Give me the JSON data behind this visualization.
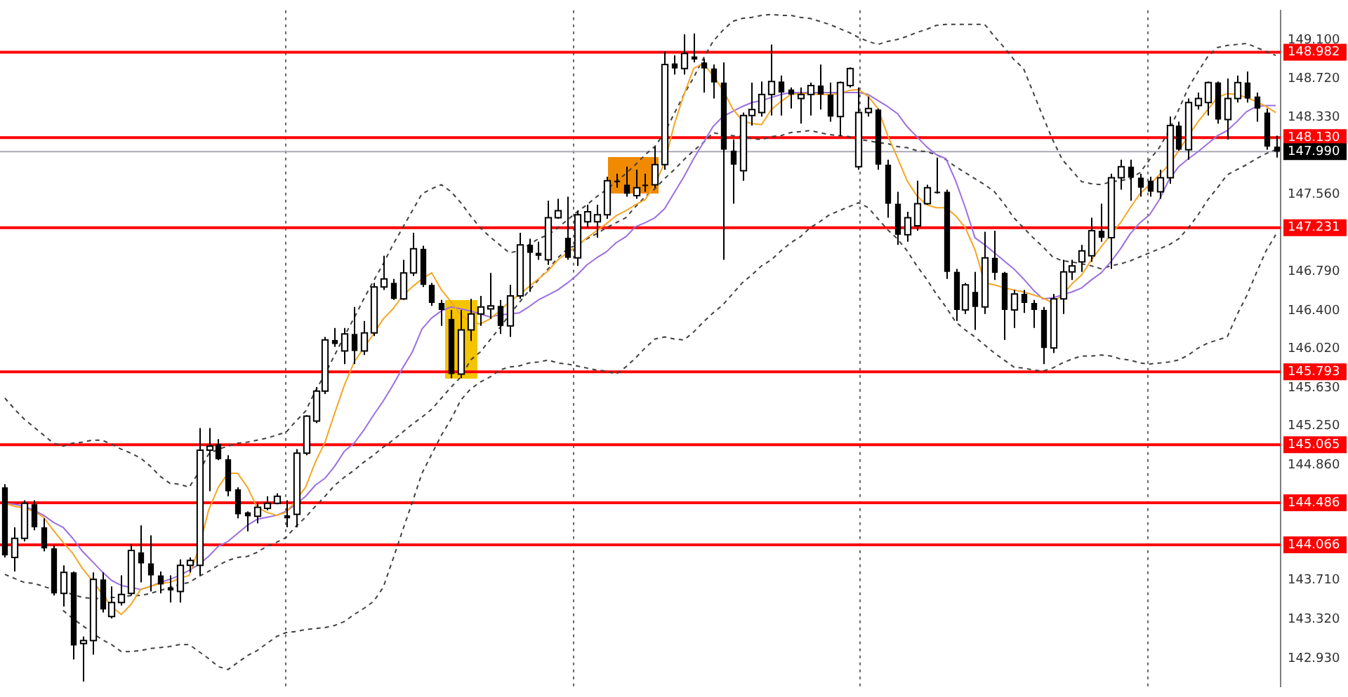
{
  "chart_data": {
    "type": "candlestick",
    "tick_labels": "y",
    "categories": [
      null,
      null,
      null,
      null,
      null,
      null,
      null,
      null,
      null,
      null,
      null,
      null,
      null,
      null,
      null,
      null,
      null,
      null,
      null,
      null,
      null,
      null,
      null,
      null,
      null,
      null,
      null,
      null,
      null,
      null,
      null,
      null,
      null,
      null,
      null,
      null,
      null,
      null,
      null,
      null,
      null,
      null,
      null,
      null,
      null,
      null,
      null,
      null,
      null,
      null,
      null,
      null,
      null,
      null,
      null,
      null,
      null,
      null,
      null,
      null,
      null,
      null,
      null,
      null,
      null,
      null,
      null,
      null,
      null,
      null,
      null,
      null,
      null,
      null,
      null,
      null,
      null,
      null,
      null,
      null,
      null,
      null,
      null,
      null,
      null,
      null,
      null,
      null,
      null,
      null,
      null,
      null,
      null,
      null,
      null,
      null,
      null,
      null,
      null,
      null,
      null,
      null,
      null,
      null,
      null,
      null,
      null,
      null,
      null,
      null,
      null,
      null,
      null,
      null,
      null,
      null,
      null,
      null,
      null,
      null,
      null,
      null,
      null,
      null,
      null,
      null,
      null,
      null,
      null,
      null,
      null,
      null
    ],
    "ohlc": [
      [
        144.64,
        144.67,
        143.94,
        143.96
      ],
      [
        143.94,
        144.24,
        143.8,
        144.13
      ],
      [
        144.13,
        144.51,
        144.1,
        144.48
      ],
      [
        144.47,
        144.51,
        144.21,
        144.24
      ],
      [
        144.24,
        144.33,
        144.0,
        144.03
      ],
      [
        144.03,
        144.06,
        143.56,
        143.58
      ],
      [
        143.58,
        143.86,
        143.45,
        143.79
      ],
      [
        143.79,
        143.8,
        142.92,
        143.06
      ],
      [
        143.08,
        143.15,
        142.7,
        143.11
      ],
      [
        143.11,
        143.79,
        142.97,
        143.72
      ],
      [
        143.72,
        143.79,
        143.39,
        143.42
      ],
      [
        143.35,
        143.65,
        143.33,
        143.49
      ],
      [
        143.49,
        143.76,
        143.46,
        143.57
      ],
      [
        143.58,
        144.07,
        143.56,
        144.01
      ],
      [
        143.99,
        144.26,
        143.69,
        143.88
      ],
      [
        143.88,
        144.16,
        143.6,
        143.76
      ],
      [
        143.76,
        143.8,
        143.58,
        143.67
      ],
      [
        143.64,
        143.76,
        143.49,
        143.61
      ],
      [
        143.6,
        143.92,
        143.49,
        143.86
      ],
      [
        143.86,
        143.94,
        143.79,
        143.91
      ],
      [
        143.86,
        145.23,
        143.76,
        145.01
      ],
      [
        145.01,
        145.23,
        144.6,
        145.05
      ],
      [
        145.07,
        145.12,
        144.91,
        144.92
      ],
      [
        144.92,
        144.96,
        144.55,
        144.6
      ],
      [
        144.62,
        144.64,
        144.33,
        144.37
      ],
      [
        144.39,
        144.4,
        144.2,
        144.35
      ],
      [
        144.35,
        144.48,
        144.28,
        144.44
      ],
      [
        144.43,
        144.55,
        144.41,
        144.48
      ],
      [
        144.48,
        144.58,
        144.47,
        144.55
      ],
      [
        144.36,
        144.51,
        144.24,
        144.33
      ],
      [
        144.37,
        145.02,
        144.24,
        144.98
      ],
      [
        144.98,
        145.36,
        144.96,
        145.35
      ],
      [
        145.3,
        145.64,
        145.28,
        145.6
      ],
      [
        145.6,
        146.14,
        145.57,
        146.11
      ],
      [
        146.11,
        146.23,
        146.04,
        146.07
      ],
      [
        146.0,
        146.23,
        145.87,
        146.17
      ],
      [
        146.17,
        146.44,
        145.87,
        146.0
      ],
      [
        146.0,
        146.3,
        145.96,
        146.18
      ],
      [
        146.18,
        146.68,
        146.15,
        146.64
      ],
      [
        146.64,
        146.95,
        146.61,
        146.72
      ],
      [
        146.68,
        146.72,
        146.51,
        146.52
      ],
      [
        146.52,
        146.91,
        146.51,
        146.78
      ],
      [
        146.78,
        147.18,
        146.75,
        147.02
      ],
      [
        147.02,
        147.05,
        146.64,
        146.66
      ],
      [
        146.66,
        146.68,
        146.45,
        146.48
      ],
      [
        146.48,
        146.51,
        146.25,
        146.41
      ],
      [
        146.32,
        146.41,
        145.73,
        145.77
      ],
      [
        145.77,
        146.41,
        145.73,
        146.21
      ],
      [
        146.21,
        146.52,
        146.1,
        146.37
      ],
      [
        146.37,
        146.55,
        146.25,
        146.44
      ],
      [
        146.42,
        146.78,
        146.32,
        146.45
      ],
      [
        146.45,
        146.51,
        146.17,
        146.25
      ],
      [
        146.25,
        146.66,
        146.14,
        146.55
      ],
      [
        146.55,
        147.18,
        146.52,
        147.06
      ],
      [
        147.06,
        147.12,
        146.59,
        146.98
      ],
      [
        146.98,
        147.09,
        146.91,
        146.95
      ],
      [
        146.91,
        147.5,
        146.86,
        147.33
      ],
      [
        147.33,
        147.52,
        147.32,
        147.4
      ],
      [
        147.13,
        147.54,
        146.91,
        146.93
      ],
      [
        146.93,
        147.4,
        146.85,
        147.36
      ],
      [
        147.29,
        147.46,
        147.23,
        147.39
      ],
      [
        147.29,
        147.46,
        147.13,
        147.36
      ],
      [
        147.36,
        147.74,
        147.32,
        147.7
      ],
      [
        147.7,
        147.77,
        147.63,
        147.69
      ],
      [
        147.66,
        147.84,
        147.54,
        147.57
      ],
      [
        147.55,
        147.81,
        147.52,
        147.63
      ],
      [
        147.66,
        147.77,
        147.59,
        147.65
      ],
      [
        147.66,
        148.04,
        147.63,
        147.86
      ],
      [
        147.86,
        148.99,
        147.81,
        148.86
      ],
      [
        148.87,
        148.95,
        148.76,
        148.82
      ],
      [
        148.82,
        149.16,
        148.76,
        148.97
      ],
      [
        148.94,
        149.17,
        148.88,
        148.91
      ],
      [
        148.88,
        148.92,
        148.58,
        148.82
      ],
      [
        148.82,
        148.86,
        148.52,
        148.68
      ],
      [
        148.68,
        148.88,
        146.91,
        148.01
      ],
      [
        148.0,
        148.11,
        147.47,
        147.86
      ],
      [
        147.8,
        148.38,
        147.7,
        148.35
      ],
      [
        148.35,
        148.68,
        148.25,
        148.41
      ],
      [
        148.38,
        148.69,
        148.34,
        148.56
      ],
      [
        148.56,
        149.06,
        148.35,
        148.69
      ],
      [
        148.69,
        148.75,
        148.35,
        148.58
      ],
      [
        148.61,
        148.63,
        148.42,
        148.56
      ],
      [
        148.52,
        148.63,
        148.27,
        148.56
      ],
      [
        148.56,
        148.68,
        148.35,
        148.65
      ],
      [
        148.65,
        148.86,
        148.41,
        148.56
      ],
      [
        148.56,
        148.68,
        148.29,
        148.34
      ],
      [
        148.34,
        148.69,
        148.15,
        148.68
      ],
      [
        148.65,
        148.83,
        148.63,
        148.82
      ],
      [
        147.84,
        148.63,
        147.81,
        148.38
      ],
      [
        148.38,
        148.54,
        148.34,
        148.42
      ],
      [
        148.41,
        148.42,
        147.81,
        147.86
      ],
      [
        147.86,
        147.91,
        147.33,
        147.47
      ],
      [
        147.47,
        147.59,
        147.06,
        147.16
      ],
      [
        147.16,
        147.39,
        147.09,
        147.33
      ],
      [
        147.25,
        147.7,
        147.2,
        147.47
      ],
      [
        147.47,
        147.66,
        147.46,
        147.63
      ],
      [
        147.59,
        147.93,
        147.57,
        147.58
      ],
      [
        147.59,
        147.61,
        146.72,
        146.79
      ],
      [
        146.79,
        146.82,
        146.3,
        146.41
      ],
      [
        146.41,
        146.68,
        146.37,
        146.66
      ],
      [
        146.59,
        146.79,
        146.21,
        146.44
      ],
      [
        146.44,
        147.19,
        146.37,
        146.93
      ],
      [
        146.93,
        147.2,
        146.71,
        146.78
      ],
      [
        146.78,
        146.79,
        146.11,
        146.41
      ],
      [
        146.41,
        146.61,
        146.23,
        146.57
      ],
      [
        146.57,
        146.61,
        146.38,
        146.48
      ],
      [
        146.48,
        146.51,
        146.23,
        146.41
      ],
      [
        146.41,
        146.44,
        145.87,
        146.03
      ],
      [
        146.03,
        146.57,
        145.98,
        146.52
      ],
      [
        146.52,
        146.91,
        146.37,
        146.79
      ],
      [
        146.79,
        146.91,
        146.71,
        146.85
      ],
      [
        146.89,
        147.06,
        146.79,
        147.0
      ],
      [
        146.95,
        147.33,
        146.89,
        147.2
      ],
      [
        147.2,
        147.47,
        147.09,
        147.13
      ],
      [
        147.13,
        147.77,
        146.82,
        147.73
      ],
      [
        147.73,
        147.91,
        147.61,
        147.84
      ],
      [
        147.84,
        147.91,
        147.5,
        147.73
      ],
      [
        147.73,
        147.77,
        147.54,
        147.63
      ],
      [
        147.7,
        147.74,
        147.54,
        147.59
      ],
      [
        147.59,
        147.81,
        147.52,
        147.73
      ],
      [
        147.73,
        148.34,
        147.67,
        148.25
      ],
      [
        148.25,
        148.29,
        148.0,
        148.01
      ],
      [
        148.01,
        148.52,
        147.91,
        148.48
      ],
      [
        148.45,
        148.58,
        148.41,
        148.52
      ],
      [
        148.48,
        148.69,
        148.35,
        148.68
      ],
      [
        148.68,
        148.69,
        148.27,
        148.31
      ],
      [
        148.31,
        148.72,
        148.11,
        148.52
      ],
      [
        148.52,
        148.75,
        148.48,
        148.68
      ],
      [
        148.68,
        148.79,
        148.48,
        148.52
      ],
      [
        148.54,
        148.58,
        148.29,
        148.42
      ],
      [
        148.38,
        148.42,
        148.01,
        148.04
      ],
      [
        148.04,
        148.15,
        147.93,
        147.99
      ]
    ],
    "series": [
      {
        "type": "line",
        "color": "#f5a623",
        "values": [
          144.48,
          144.45,
          144.43,
          144.4,
          144.34,
          144.21,
          144.09,
          143.98,
          143.83,
          143.71,
          143.58,
          143.45,
          143.37,
          143.47,
          143.62,
          143.65,
          143.68,
          143.69,
          143.73,
          143.76,
          144.03,
          144.41,
          144.64,
          144.78,
          144.78,
          144.64,
          144.44,
          144.39,
          144.36,
          144.39,
          144.51,
          144.64,
          144.89,
          145.09,
          145.38,
          145.66,
          145.89,
          146.03,
          146.17,
          146.32,
          146.42,
          146.55,
          146.64,
          146.72,
          146.78,
          146.61,
          146.49,
          146.36,
          146.29,
          146.27,
          146.32,
          146.4,
          146.49,
          146.56,
          146.64,
          146.72,
          146.8,
          146.91,
          146.98,
          147.05,
          147.13,
          147.2,
          147.27,
          147.35,
          147.4,
          147.46,
          147.51,
          147.66,
          147.88,
          148.26,
          148.56,
          148.82,
          148.87,
          148.75,
          148.61,
          148.42,
          148.3,
          148.27,
          148.26,
          148.41,
          148.49,
          148.56,
          148.57,
          148.57,
          148.56,
          148.56,
          148.57,
          148.6,
          148.61,
          148.54,
          148.42,
          148.15,
          147.93,
          147.7,
          147.55,
          147.46,
          147.43,
          147.43,
          147.35,
          147.23,
          147.01,
          146.68,
          146.66,
          146.63,
          146.61,
          146.59,
          146.56,
          146.53,
          146.48,
          146.56,
          146.67,
          146.76,
          146.91,
          147.04,
          147.16,
          147.28,
          147.43,
          147.57,
          147.66,
          147.76,
          147.86,
          148.0,
          148.15,
          148.29,
          148.41,
          148.53,
          148.57,
          148.56,
          148.53,
          148.49,
          148.44,
          148.38
        ]
      },
      {
        "type": "line",
        "color": "#9b6fe0",
        "values": [
          144.48,
          144.47,
          144.45,
          144.41,
          144.36,
          144.29,
          144.24,
          144.13,
          144.0,
          143.9,
          143.8,
          143.71,
          143.66,
          143.64,
          143.62,
          143.65,
          143.69,
          143.72,
          143.76,
          143.81,
          143.87,
          143.95,
          144.05,
          144.1,
          144.18,
          144.26,
          144.32,
          144.34,
          144.36,
          144.4,
          144.47,
          144.55,
          144.66,
          144.73,
          144.85,
          145.0,
          145.08,
          145.21,
          145.36,
          145.5,
          145.66,
          145.83,
          145.99,
          146.22,
          146.33,
          146.4,
          146.44,
          146.42,
          146.4,
          146.37,
          146.34,
          146.36,
          146.37,
          146.38,
          146.44,
          146.51,
          146.56,
          146.61,
          146.68,
          146.76,
          146.86,
          146.93,
          146.99,
          147.08,
          147.14,
          147.24,
          147.28,
          147.33,
          147.42,
          147.58,
          147.74,
          147.92,
          148.08,
          148.24,
          148.34,
          148.39,
          148.44,
          148.48,
          148.5,
          148.53,
          148.56,
          148.58,
          148.58,
          148.58,
          148.58,
          148.58,
          148.58,
          148.58,
          148.58,
          148.56,
          148.5,
          148.44,
          148.37,
          148.24,
          148.14,
          148.04,
          147.96,
          147.92,
          147.7,
          147.43,
          147.13,
          147.06,
          146.98,
          146.9,
          146.82,
          146.72,
          146.61,
          146.52,
          146.53,
          146.56,
          146.59,
          146.63,
          146.71,
          146.78,
          146.89,
          147.02,
          147.17,
          147.28,
          147.36,
          147.51,
          147.71,
          147.84,
          147.92,
          147.99,
          148.07,
          148.15,
          148.2,
          148.29,
          148.39,
          148.44,
          148.45,
          148.45
        ]
      },
      {
        "type": "line",
        "color": "#404040",
        "line_style": "dashed",
        "values": [
          145.53,
          145.42,
          145.32,
          145.24,
          145.16,
          145.08,
          145.05,
          145.08,
          145.09,
          145.11,
          145.11,
          145.07,
          145.02,
          144.98,
          144.93,
          144.85,
          144.75,
          144.68,
          144.67,
          144.64,
          144.79,
          144.97,
          145.02,
          145.05,
          145.08,
          145.09,
          145.11,
          145.13,
          145.16,
          145.19,
          145.3,
          145.4,
          145.6,
          145.77,
          145.96,
          146.15,
          146.33,
          146.52,
          146.7,
          146.87,
          147.06,
          147.23,
          147.4,
          147.57,
          147.62,
          147.66,
          147.59,
          147.48,
          147.35,
          147.23,
          147.14,
          147.06,
          146.98,
          147.0,
          147.06,
          147.12,
          147.16,
          147.23,
          147.31,
          147.39,
          147.46,
          147.54,
          147.61,
          147.69,
          147.77,
          147.86,
          147.96,
          148.04,
          148.18,
          148.37,
          148.56,
          148.73,
          148.92,
          149.09,
          149.2,
          149.29,
          149.32,
          149.33,
          149.35,
          149.36,
          149.35,
          149.35,
          149.33,
          149.32,
          149.29,
          149.26,
          149.22,
          149.18,
          149.13,
          149.09,
          149.06,
          149.09,
          149.11,
          149.14,
          149.18,
          149.21,
          149.25,
          149.26,
          149.26,
          149.26,
          149.26,
          149.26,
          149.14,
          149.03,
          148.91,
          148.82,
          148.58,
          148.34,
          148.11,
          147.91,
          147.8,
          147.69,
          147.67,
          147.66,
          147.69,
          147.7,
          147.72,
          147.78,
          147.91,
          148.03,
          148.2,
          148.41,
          148.63,
          148.79,
          148.94,
          149.03,
          149.05,
          149.06,
          149.07,
          149.03,
          148.99,
          148.95
        ]
      },
      {
        "type": "line",
        "color": "#404040",
        "line_style": "dashed",
        "values": [
          143.77,
          143.73,
          143.69,
          143.68,
          143.65,
          143.62,
          143.6,
          143.57,
          143.54,
          143.53,
          143.53,
          143.54,
          143.54,
          143.56,
          143.56,
          143.58,
          143.61,
          143.64,
          143.67,
          143.69,
          143.75,
          143.8,
          143.86,
          143.91,
          143.94,
          143.95,
          143.99,
          144.05,
          144.09,
          144.14,
          144.25,
          144.34,
          144.45,
          144.55,
          144.66,
          144.74,
          144.81,
          144.89,
          144.96,
          145.04,
          145.11,
          145.19,
          145.27,
          145.34,
          145.42,
          145.53,
          145.64,
          145.74,
          145.91,
          145.99,
          146.11,
          146.23,
          146.36,
          146.48,
          146.6,
          146.71,
          146.82,
          146.93,
          147.02,
          147.06,
          147.12,
          147.17,
          147.23,
          147.28,
          147.33,
          147.44,
          147.54,
          147.62,
          147.72,
          147.81,
          147.91,
          148.0,
          148.08,
          148.18,
          148.16,
          148.15,
          148.14,
          148.12,
          148.11,
          148.14,
          148.15,
          148.18,
          148.19,
          148.2,
          148.18,
          148.16,
          148.15,
          148.14,
          148.11,
          148.1,
          148.08,
          148.07,
          148.04,
          148.03,
          148.0,
          147.99,
          147.96,
          147.91,
          147.84,
          147.78,
          147.72,
          147.66,
          147.59,
          147.47,
          147.33,
          147.23,
          147.13,
          147.04,
          146.94,
          146.9,
          146.89,
          146.87,
          146.85,
          146.82,
          146.85,
          146.87,
          146.9,
          146.94,
          146.98,
          147.02,
          147.06,
          147.12,
          147.23,
          147.36,
          147.51,
          147.63,
          147.76,
          147.81,
          147.86,
          147.92,
          147.97,
          148.01
        ]
      },
      {
        "type": "line",
        "color": "#404040",
        "line_style": "dashed",
        "values": [
          null,
          null,
          null,
          null,
          null,
          null,
          143.41,
          143.33,
          143.26,
          143.19,
          143.12,
          143.07,
          143.0,
          143.0,
          143.01,
          143.03,
          143.04,
          143.05,
          143.07,
          143.07,
          143.0,
          142.93,
          142.85,
          142.82,
          142.89,
          142.96,
          143.01,
          143.08,
          143.15,
          143.19,
          143.2,
          143.22,
          143.23,
          143.24,
          143.26,
          143.3,
          143.37,
          143.43,
          143.5,
          143.64,
          143.92,
          144.21,
          144.49,
          144.78,
          144.97,
          145.16,
          145.32,
          145.51,
          145.62,
          145.69,
          145.74,
          145.81,
          145.84,
          145.85,
          145.88,
          145.89,
          145.91,
          145.88,
          145.87,
          145.85,
          145.83,
          145.81,
          145.8,
          145.77,
          145.84,
          145.93,
          146.03,
          146.12,
          146.14,
          146.12,
          146.11,
          146.19,
          146.29,
          146.38,
          146.46,
          146.57,
          146.68,
          146.76,
          146.85,
          146.91,
          147.0,
          147.08,
          147.14,
          147.23,
          147.29,
          147.36,
          147.4,
          147.44,
          147.48,
          147.43,
          147.32,
          147.21,
          147.12,
          147.0,
          146.85,
          146.72,
          146.57,
          146.44,
          146.29,
          146.21,
          146.14,
          146.06,
          145.98,
          145.91,
          145.84,
          145.83,
          145.81,
          145.8,
          145.83,
          145.88,
          145.92,
          145.95,
          145.95,
          145.96,
          145.95,
          145.92,
          145.91,
          145.88,
          145.87,
          145.88,
          145.89,
          145.91,
          145.96,
          146.03,
          146.08,
          146.11,
          146.14,
          146.36,
          146.55,
          146.78,
          147.0,
          147.16
        ]
      }
    ],
    "ylim": [
      142.65,
      149.4
    ],
    "yticks": [
      {
        "value": 149.1,
        "label": "149.100"
      },
      {
        "value": 148.72,
        "label": "148.720"
      },
      {
        "value": 148.33,
        "label": "148.330"
      },
      {
        "value": 147.56,
        "label": "147.560"
      },
      {
        "value": 146.79,
        "label": "146.790"
      },
      {
        "value": 146.4,
        "label": "146.400"
      },
      {
        "value": 146.02,
        "label": "146.020"
      },
      {
        "value": 145.63,
        "label": "145.630"
      },
      {
        "value": 145.25,
        "label": "145.250"
      },
      {
        "value": 144.86,
        "label": "144.860"
      },
      {
        "value": 143.71,
        "label": "143.710"
      },
      {
        "value": 143.32,
        "label": "143.320"
      },
      {
        "value": 142.93,
        "label": "142.930"
      }
    ],
    "ref_lines": [
      {
        "axis": "y",
        "value": 148.982,
        "label": "148.982",
        "color": "#ff0000"
      },
      {
        "axis": "y",
        "value": 148.13,
        "label": "148.130",
        "color": "#ff0000"
      },
      {
        "axis": "y",
        "value": 147.99,
        "label": "147.990",
        "color": "#a8a8b8"
      },
      {
        "axis": "y",
        "value": 147.231,
        "label": "147.231",
        "color": "#ff0000"
      },
      {
        "axis": "y",
        "value": 145.793,
        "label": "145.793",
        "color": "#ff0000"
      },
      {
        "axis": "y",
        "value": 145.065,
        "label": "145.065",
        "color": "#ff0000"
      },
      {
        "axis": "y",
        "value": 144.486,
        "label": "144.486",
        "color": "#ff0000"
      },
      {
        "axis": "y",
        "value": 144.066,
        "label": "144.066",
        "color": "#ff0000"
      }
    ]
  }
}
